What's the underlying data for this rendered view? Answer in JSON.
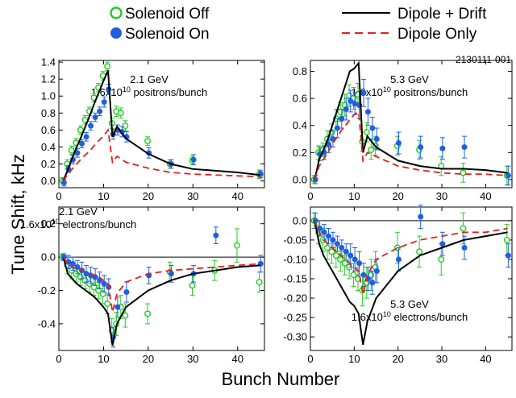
{
  "figure_id": "2130111-001",
  "ylabel": "Tune Shift, kHz",
  "xlabel": "Bunch Number",
  "legend": [
    {
      "label": "Solenoid Off",
      "style": "open-circle",
      "color": "#22cc22"
    },
    {
      "label": "Solenoid On",
      "style": "filled-circle",
      "color": "#1f5fe0"
    },
    {
      "label": "Dipole + Drift",
      "style": "solid-line",
      "color": "#000000"
    },
    {
      "label": "Dipole Only",
      "style": "dashed-line",
      "color": "#e02020"
    }
  ],
  "colors": {
    "off": "#22cc22",
    "on": "#1f5fe0",
    "drift": "#000000",
    "dipole": "#e02020"
  },
  "chart_data": [
    {
      "type": "scatter",
      "panel": "top-left",
      "annotation": [
        "2.1 GeV",
        "1.6x10",
        "10",
        " positrons/bunch"
      ],
      "xlim": [
        0,
        46
      ],
      "ylim": [
        -0.08,
        1.42
      ],
      "xticks": [
        0,
        10,
        20,
        30,
        40
      ],
      "yticks": [
        0.0,
        0.2,
        0.4,
        0.6,
        0.8,
        1.0,
        1.2,
        1.4
      ],
      "ytick_labels": [
        "0.0",
        "0.2",
        "0.4",
        "0.6",
        "0.8",
        "1.0",
        "1.2",
        "1.4"
      ],
      "zero_line": false,
      "series": [
        {
          "name": "Solenoid Off",
          "marker": "open",
          "x": [
            1,
            2,
            3,
            4,
            5,
            6,
            7,
            8,
            9,
            10,
            11,
            12,
            13,
            14,
            15,
            20,
            25,
            30,
            45
          ],
          "y": [
            0.0,
            0.2,
            0.36,
            0.45,
            0.6,
            0.72,
            0.82,
            0.98,
            1.1,
            1.24,
            1.35,
            0.68,
            0.82,
            0.8,
            0.65,
            0.47,
            0.2,
            0.24,
            0.08
          ],
          "err": [
            0.04,
            0.05,
            0.05,
            0.05,
            0.05,
            0.05,
            0.05,
            0.05,
            0.05,
            0.05,
            0.05,
            0.06,
            0.06,
            0.06,
            0.06,
            0.05,
            0.05,
            0.05,
            0.05
          ]
        },
        {
          "name": "Solenoid On",
          "marker": "filled",
          "x": [
            1,
            2,
            3,
            4,
            5,
            6,
            7,
            8,
            9,
            10,
            11,
            12,
            13,
            14,
            15,
            20,
            25,
            30,
            45
          ],
          "y": [
            -0.02,
            0.14,
            0.25,
            0.33,
            0.44,
            0.52,
            0.65,
            0.75,
            0.82,
            0.93,
            1.08,
            0.55,
            0.6,
            0.58,
            0.52,
            0.33,
            0.2,
            0.25,
            0.08
          ],
          "err": [
            0.04,
            0.04,
            0.05,
            0.05,
            0.05,
            0.05,
            0.05,
            0.05,
            0.05,
            0.06,
            0.06,
            0.06,
            0.06,
            0.06,
            0.06,
            0.06,
            0.05,
            0.06,
            0.04
          ]
        },
        {
          "name": "Dipole + Drift",
          "line": "solid",
          "x": [
            1,
            2,
            3,
            4,
            5,
            6,
            7,
            8,
            9,
            10,
            11,
            12,
            13,
            15,
            20,
            25,
            30,
            35,
            40,
            45
          ],
          "y": [
            0.0,
            0.13,
            0.27,
            0.4,
            0.52,
            0.65,
            0.78,
            0.92,
            1.05,
            1.18,
            1.3,
            0.52,
            0.64,
            0.5,
            0.32,
            0.2,
            0.14,
            0.12,
            0.1,
            0.07
          ]
        },
        {
          "name": "Dipole Only",
          "line": "dashed",
          "x": [
            1,
            2,
            3,
            4,
            5,
            6,
            7,
            8,
            9,
            10,
            11,
            12,
            13,
            15,
            20,
            25,
            30,
            35,
            40,
            45
          ],
          "y": [
            0.0,
            0.08,
            0.14,
            0.2,
            0.26,
            0.31,
            0.36,
            0.42,
            0.48,
            0.53,
            0.6,
            0.22,
            0.29,
            0.22,
            0.15,
            0.1,
            0.08,
            0.07,
            0.06,
            0.05
          ]
        }
      ]
    },
    {
      "type": "scatter",
      "panel": "top-right",
      "annotation": [
        "5.3 GeV",
        "1.6x10",
        "10",
        " positrons/bunch"
      ],
      "xlim": [
        0,
        46
      ],
      "ylim": [
        -0.06,
        0.88
      ],
      "xticks": [
        0,
        10,
        20,
        30,
        40
      ],
      "yticks": [
        0.0,
        0.2,
        0.4,
        0.6,
        0.8
      ],
      "ytick_labels": [
        "0.0",
        "0.2",
        "0.4",
        "0.6",
        "0.8"
      ],
      "zero_line": false,
      "series": [
        {
          "name": "Solenoid Off",
          "marker": "open",
          "x": [
            1,
            2,
            3,
            4,
            5,
            6,
            7,
            8,
            9,
            10,
            11,
            12,
            13,
            14,
            15,
            20,
            25,
            30,
            35,
            45
          ],
          "y": [
            0.0,
            0.2,
            0.22,
            0.3,
            0.35,
            0.45,
            0.5,
            0.55,
            0.62,
            0.6,
            0.63,
            0.28,
            0.35,
            0.22,
            0.25,
            0.25,
            0.22,
            0.1,
            0.05,
            0.03
          ],
          "err": [
            0.03,
            0.05,
            0.05,
            0.06,
            0.06,
            0.07,
            0.07,
            0.08,
            0.08,
            0.08,
            0.08,
            0.07,
            0.07,
            0.07,
            0.07,
            0.07,
            0.07,
            0.07,
            0.07,
            0.07
          ]
        },
        {
          "name": "Solenoid On",
          "marker": "filled",
          "x": [
            1,
            2,
            3,
            4,
            5,
            6,
            7,
            8,
            9,
            10,
            11,
            12,
            13,
            14,
            15,
            20,
            25,
            30,
            35,
            45
          ],
          "y": [
            0.0,
            0.19,
            0.2,
            0.26,
            0.3,
            0.38,
            0.45,
            0.52,
            0.58,
            0.56,
            0.55,
            0.64,
            0.5,
            0.38,
            0.3,
            0.27,
            0.24,
            0.23,
            0.24,
            0.03
          ],
          "err": [
            0.03,
            0.05,
            0.05,
            0.06,
            0.06,
            0.07,
            0.07,
            0.08,
            0.08,
            0.08,
            0.1,
            0.1,
            0.1,
            0.08,
            0.08,
            0.08,
            0.08,
            0.08,
            0.08,
            0.07
          ]
        },
        {
          "name": "Dipole + Drift",
          "line": "solid",
          "x": [
            1,
            2,
            3,
            4,
            5,
            6,
            7,
            8,
            9,
            10,
            11,
            12,
            13,
            15,
            20,
            25,
            30,
            35,
            40,
            45
          ],
          "y": [
            0.0,
            0.15,
            0.22,
            0.3,
            0.4,
            0.5,
            0.6,
            0.7,
            0.8,
            0.82,
            0.86,
            0.2,
            0.32,
            0.24,
            0.14,
            0.1,
            0.08,
            0.08,
            0.07,
            0.05
          ]
        },
        {
          "name": "Dipole Only",
          "line": "dashed",
          "x": [
            1,
            2,
            3,
            4,
            5,
            6,
            7,
            8,
            9,
            10,
            11,
            12,
            13,
            15,
            20,
            25,
            30,
            35,
            40,
            45
          ],
          "y": [
            0.0,
            0.1,
            0.15,
            0.2,
            0.26,
            0.31,
            0.36,
            0.4,
            0.44,
            0.48,
            0.5,
            0.14,
            0.2,
            0.17,
            0.1,
            0.07,
            0.05,
            0.04,
            0.04,
            0.03
          ]
        }
      ]
    },
    {
      "type": "scatter",
      "panel": "bottom-left",
      "annotation": [
        "2.1 GeV",
        "1.6x10",
        "10",
        " electrons/bunch"
      ],
      "xlim": [
        0,
        46
      ],
      "ylim": [
        -0.56,
        0.3
      ],
      "xticks": [
        0,
        10,
        20,
        30,
        40
      ],
      "yticks": [
        -0.4,
        -0.2,
        0.0,
        0.2
      ],
      "ytick_labels": [
        "-0.4",
        "-0.2",
        "0.0",
        "0.2"
      ],
      "zero_line": true,
      "series": [
        {
          "name": "Solenoid Off",
          "marker": "open",
          "x": [
            1,
            2,
            3,
            4,
            5,
            6,
            7,
            8,
            9,
            10,
            11,
            12,
            13,
            14,
            15,
            20,
            25,
            30,
            35,
            40,
            45
          ],
          "y": [
            0.0,
            -0.05,
            -0.08,
            -0.1,
            -0.12,
            -0.14,
            -0.16,
            -0.18,
            -0.2,
            -0.22,
            -0.28,
            -0.44,
            -0.4,
            -0.3,
            -0.35,
            -0.34,
            -0.09,
            -0.17,
            -0.08,
            0.07,
            -0.15
          ],
          "err": [
            0.02,
            0.05,
            0.05,
            0.05,
            0.05,
            0.05,
            0.05,
            0.05,
            0.05,
            0.06,
            0.06,
            0.07,
            0.07,
            0.07,
            0.07,
            0.06,
            0.06,
            0.06,
            0.06,
            0.1,
            0.06
          ]
        },
        {
          "name": "Solenoid On",
          "marker": "filled",
          "x": [
            1,
            2,
            3,
            4,
            5,
            6,
            7,
            8,
            9,
            10,
            11,
            12,
            13,
            15,
            20,
            25,
            30,
            35,
            45
          ],
          "y": [
            0.0,
            -0.03,
            -0.04,
            -0.06,
            -0.08,
            -0.1,
            -0.11,
            -0.12,
            -0.14,
            -0.16,
            -0.18,
            -0.48,
            -0.3,
            -0.21,
            -0.11,
            -0.1,
            -0.1,
            0.13,
            -0.04
          ],
          "err": [
            0.02,
            0.04,
            0.04,
            0.04,
            0.05,
            0.05,
            0.05,
            0.05,
            0.05,
            0.05,
            0.05,
            0.06,
            0.06,
            0.06,
            0.05,
            0.05,
            0.05,
            0.05,
            0.05
          ]
        },
        {
          "name": "Dipole + Drift",
          "line": "solid",
          "x": [
            1,
            2,
            3,
            4,
            5,
            6,
            7,
            8,
            9,
            10,
            11,
            12,
            13,
            15,
            20,
            25,
            30,
            35,
            40,
            45
          ],
          "y": [
            0.0,
            -0.1,
            -0.13,
            -0.16,
            -0.18,
            -0.2,
            -0.22,
            -0.24,
            -0.27,
            -0.3,
            -0.34,
            -0.53,
            -0.4,
            -0.3,
            -0.2,
            -0.14,
            -0.1,
            -0.08,
            -0.06,
            -0.05
          ]
        },
        {
          "name": "Dipole Only",
          "line": "dashed",
          "x": [
            1,
            2,
            3,
            4,
            5,
            6,
            7,
            8,
            9,
            10,
            11,
            12,
            13,
            15,
            20,
            25,
            30,
            35,
            40,
            45
          ],
          "y": [
            0.0,
            -0.04,
            -0.06,
            -0.07,
            -0.08,
            -0.09,
            -0.1,
            -0.11,
            -0.12,
            -0.14,
            -0.16,
            -0.33,
            -0.22,
            -0.15,
            -0.1,
            -0.08,
            -0.07,
            -0.06,
            -0.05,
            -0.04
          ]
        }
      ]
    },
    {
      "type": "scatter",
      "panel": "bottom-right",
      "annotation": [
        "5.3 GeV",
        "1.6x10",
        "10",
        " electrons/bunch"
      ],
      "xlim": [
        0,
        46
      ],
      "ylim": [
        -0.335,
        0.035
      ],
      "xticks": [
        0,
        10,
        20,
        30,
        40
      ],
      "yticks": [
        0.0,
        -0.05,
        -0.1,
        -0.15,
        -0.2,
        -0.25,
        -0.3
      ],
      "ytick_labels": [
        "0.0",
        "-0.05",
        "-0.10",
        "-0.15",
        "-0.20",
        "-0.25",
        "-0.30"
      ],
      "zero_line": true,
      "series": [
        {
          "name": "Solenoid Off",
          "marker": "open",
          "x": [
            1,
            2,
            3,
            4,
            5,
            6,
            7,
            8,
            9,
            10,
            11,
            12,
            13,
            14,
            15,
            20,
            25,
            30,
            35,
            45
          ],
          "y": [
            0.0,
            -0.03,
            -0.05,
            -0.07,
            -0.08,
            -0.09,
            -0.1,
            -0.11,
            -0.12,
            -0.14,
            -0.15,
            -0.18,
            -0.16,
            -0.14,
            -0.12,
            -0.07,
            -0.08,
            -0.1,
            -0.02,
            -0.05
          ],
          "err": [
            0.02,
            0.03,
            0.03,
            0.03,
            0.03,
            0.03,
            0.03,
            0.03,
            0.03,
            0.03,
            0.03,
            0.04,
            0.04,
            0.04,
            0.04,
            0.04,
            0.04,
            0.04,
            0.04,
            0.04
          ]
        },
        {
          "name": "Solenoid On",
          "marker": "filled",
          "x": [
            1,
            2,
            3,
            4,
            5,
            6,
            7,
            8,
            9,
            10,
            11,
            12,
            13,
            14,
            15,
            20,
            25,
            30,
            35,
            45
          ],
          "y": [
            0.0,
            -0.02,
            -0.03,
            -0.04,
            -0.05,
            -0.06,
            -0.07,
            -0.08,
            -0.09,
            -0.1,
            -0.11,
            -0.14,
            -0.15,
            -0.16,
            -0.13,
            -0.1,
            0.01,
            -0.06,
            -0.07,
            -0.09
          ],
          "err": [
            0.02,
            0.02,
            0.02,
            0.02,
            0.02,
            0.02,
            0.02,
            0.02,
            0.03,
            0.03,
            0.03,
            0.03,
            0.03,
            0.03,
            0.03,
            0.03,
            0.03,
            0.03,
            0.03,
            0.03
          ]
        },
        {
          "name": "Dipole + Drift",
          "line": "solid",
          "x": [
            1,
            2,
            3,
            4,
            5,
            6,
            7,
            8,
            9,
            10,
            11,
            12,
            13,
            15,
            20,
            25,
            30,
            35,
            40,
            45
          ],
          "y": [
            0.0,
            -0.06,
            -0.09,
            -0.11,
            -0.13,
            -0.15,
            -0.17,
            -0.19,
            -0.21,
            -0.22,
            -0.24,
            -0.32,
            -0.26,
            -0.2,
            -0.13,
            -0.09,
            -0.07,
            -0.05,
            -0.04,
            -0.03
          ]
        },
        {
          "name": "Dipole Only",
          "line": "dashed",
          "x": [
            1,
            2,
            3,
            4,
            5,
            6,
            7,
            8,
            9,
            10,
            11,
            12,
            13,
            15,
            20,
            25,
            30,
            35,
            40,
            45
          ],
          "y": [
            0.0,
            -0.03,
            -0.05,
            -0.06,
            -0.07,
            -0.08,
            -0.09,
            -0.1,
            -0.11,
            -0.12,
            -0.13,
            -0.19,
            -0.14,
            -0.1,
            -0.07,
            -0.05,
            -0.04,
            -0.03,
            -0.03,
            -0.02
          ]
        }
      ]
    }
  ]
}
